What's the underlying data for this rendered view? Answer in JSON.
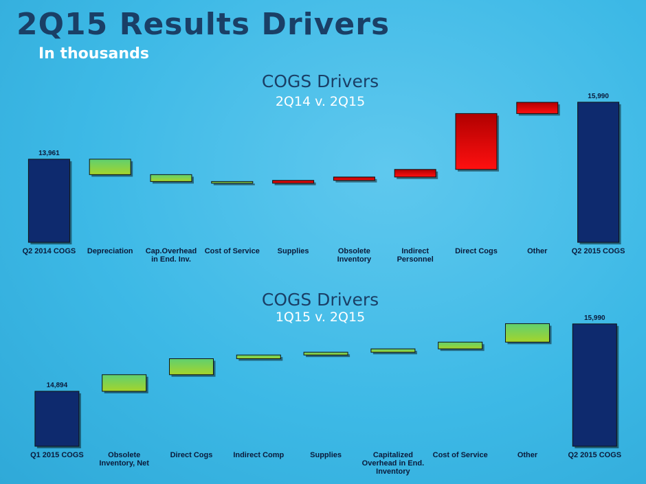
{
  "header": {
    "title": "2Q15 Results Drivers",
    "subtitle": "In thousands"
  },
  "chart_data": [
    {
      "type": "waterfall",
      "title": "COGS Drivers",
      "subtitle": "2Q14 v. 2Q15",
      "categories": [
        "Q2 2014 COGS",
        "Depreciation",
        "Cap.Overhead in End. Inv.",
        "Cost of Service",
        "Supplies",
        "Obsolete Inventory",
        "Indirect Personnel",
        "Direct Cogs",
        "Other",
        "Q2 2015 COGS"
      ],
      "measure": [
        "total",
        "relative",
        "relative",
        "relative",
        "relative",
        "relative",
        "relative",
        "relative",
        "relative",
        "total"
      ],
      "values": [
        13961,
        -550,
        -245,
        -60,
        100,
        120,
        270,
        1990,
        400,
        15990
      ],
      "value_labels": [
        "13,961",
        null,
        null,
        null,
        null,
        null,
        null,
        null,
        null,
        "15,990"
      ],
      "colors": [
        "#0e2a6e",
        "#8fd040",
        "#8fd040",
        "#8fd040",
        "#e00000",
        "#e00000",
        "#e00000",
        "#e00000",
        "#e00000",
        "#0e2a6e"
      ],
      "ylim": [
        11000,
        16500
      ]
    },
    {
      "type": "waterfall",
      "title": "COGS Drivers",
      "subtitle": "1Q15 v. 2Q15",
      "categories": [
        "Q1 2015 COGS",
        "Obsolete Inventory, Net",
        "Direct Cogs",
        "Indirect Comp",
        "Supplies",
        "Capitalized Overhead in End. Inventory",
        "Cost of Service",
        "Other",
        "Q2 2015 COGS"
      ],
      "measure": [
        "total",
        "relative",
        "relative",
        "relative",
        "relative",
        "relative",
        "relative",
        "relative",
        "total"
      ],
      "values": [
        14894,
        270,
        260,
        60,
        45,
        55,
        110,
        300,
        15990
      ],
      "value_labels": [
        "14,894",
        null,
        null,
        null,
        null,
        null,
        null,
        null,
        "15,990"
      ],
      "colors": [
        "#0e2a6e",
        "#8fd040",
        "#8fd040",
        "#8fd040",
        "#8fd040",
        "#8fd040",
        "#8fd040",
        "#8fd040",
        "#0e2a6e"
      ],
      "ylim": [
        14000,
        16200
      ]
    }
  ]
}
